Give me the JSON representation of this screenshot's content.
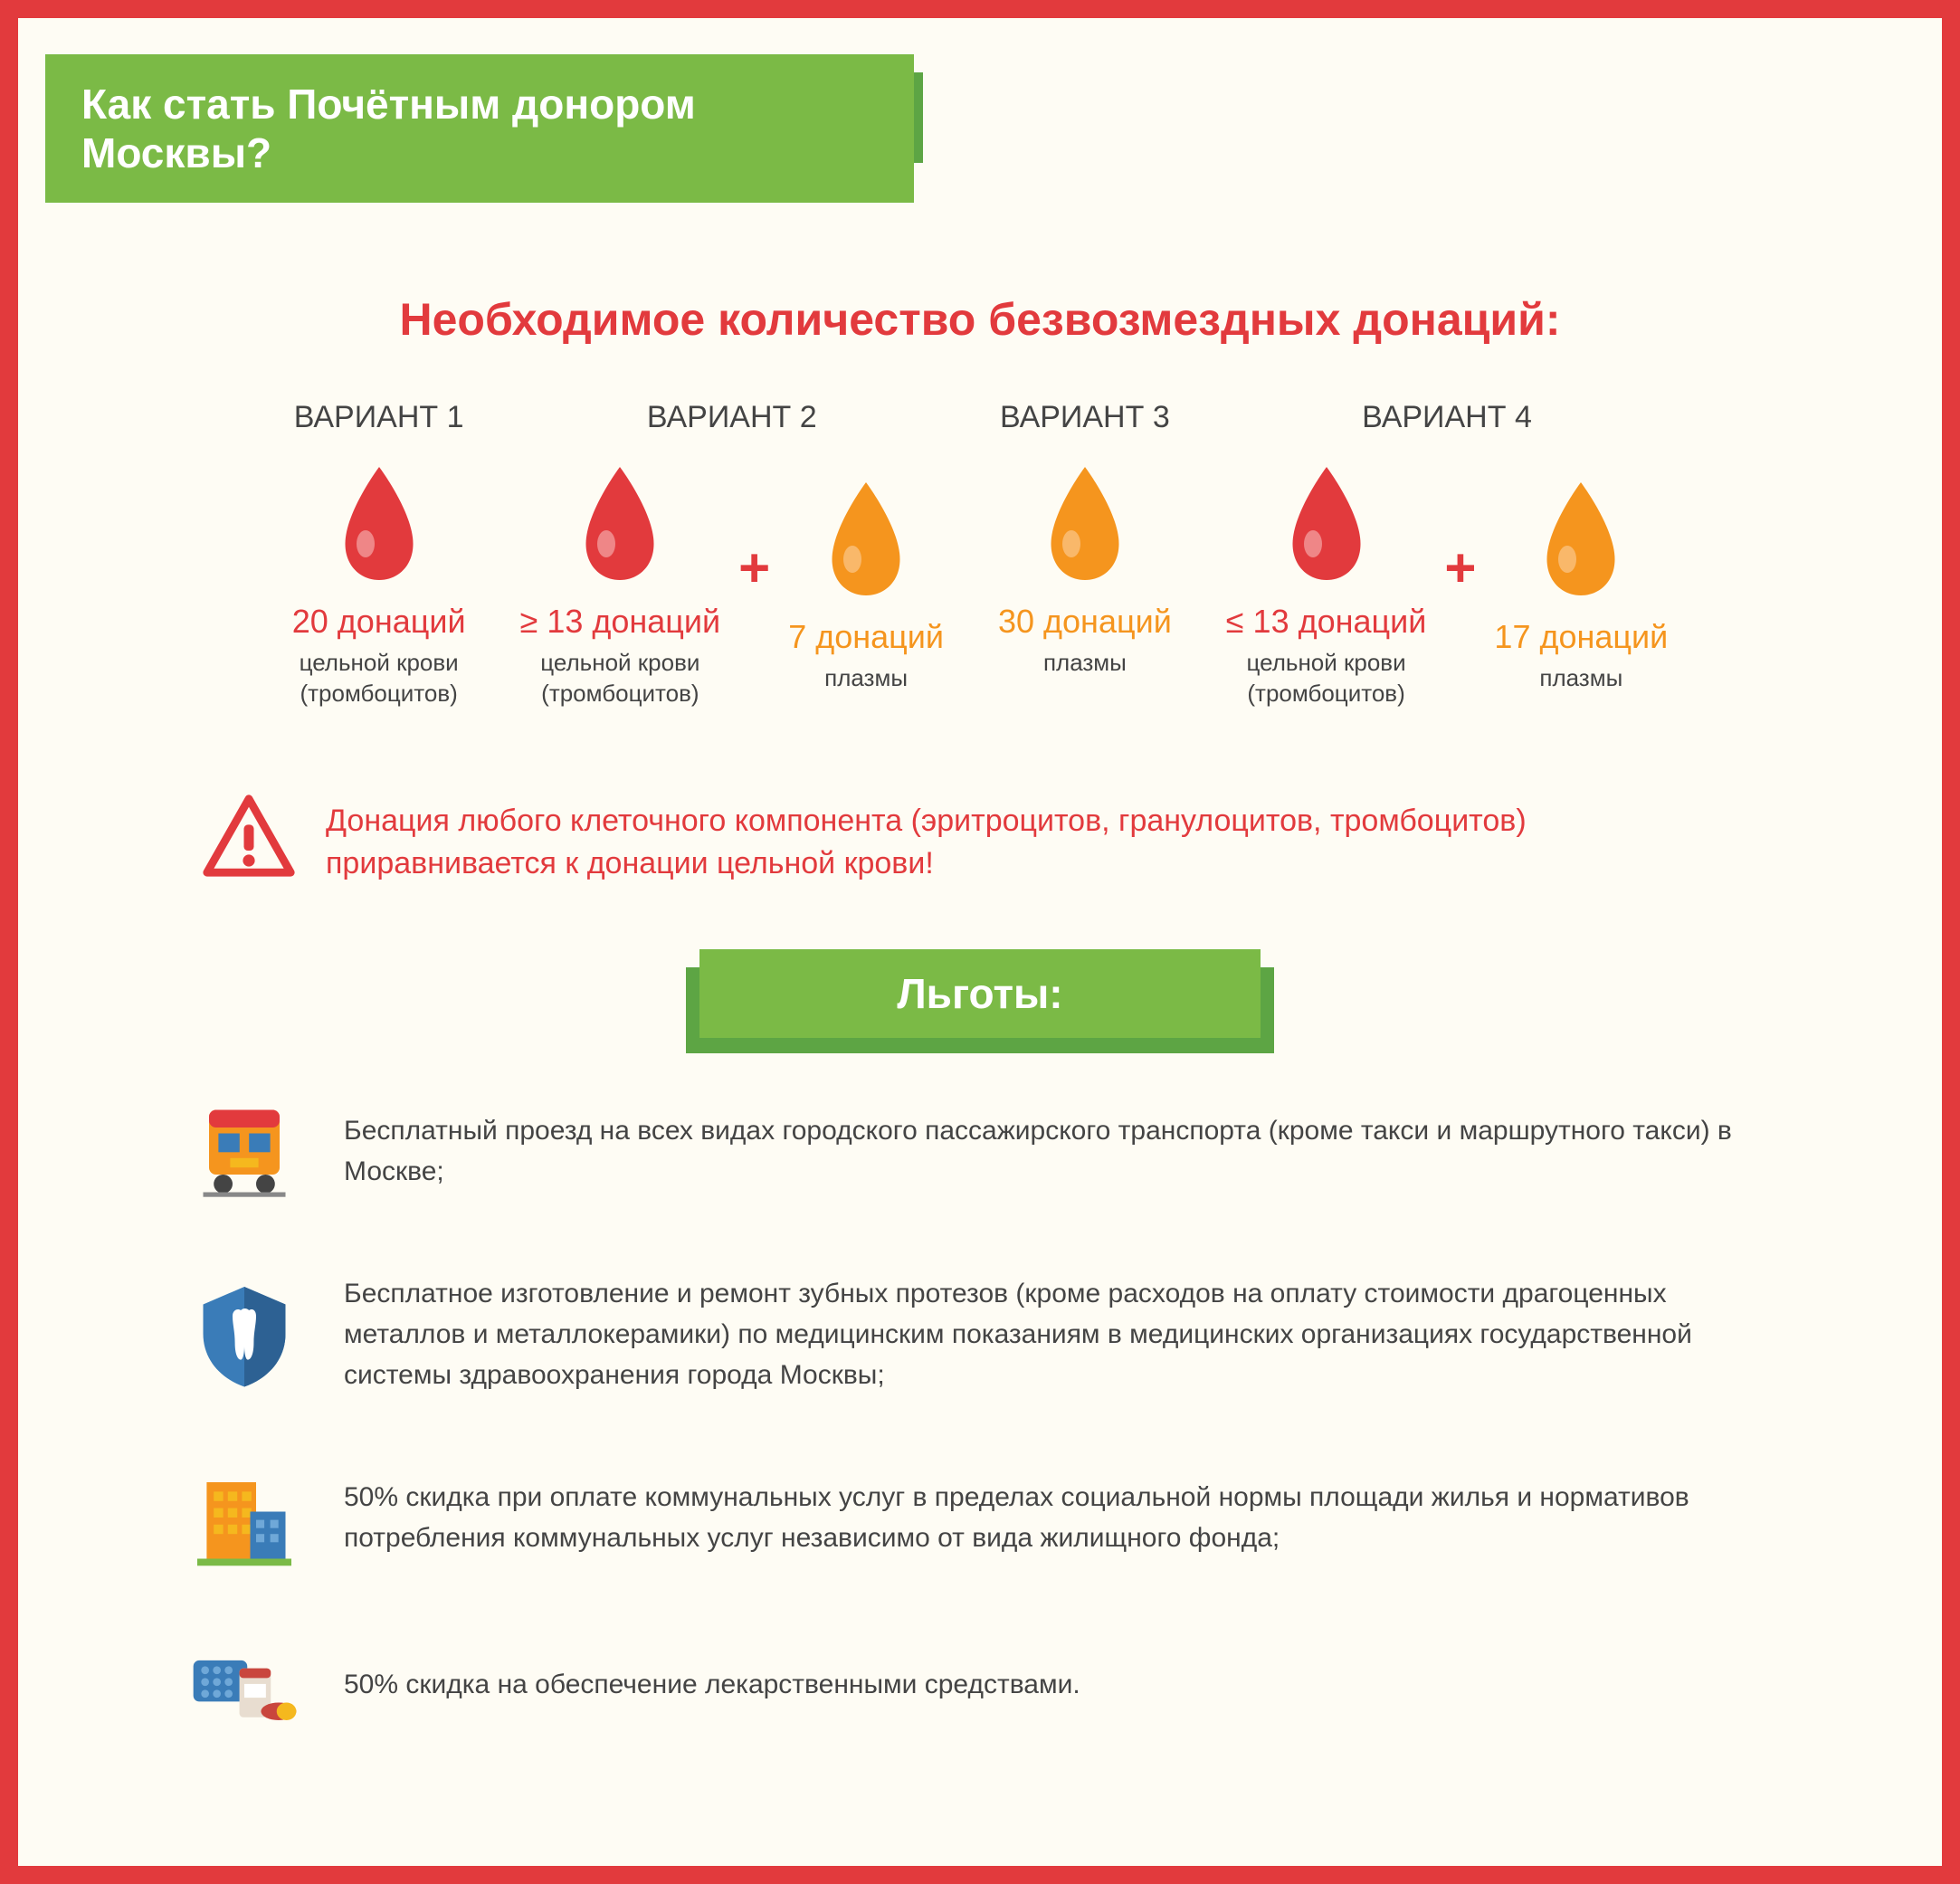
{
  "colors": {
    "border": "#e23a3d",
    "background": "#fefcf4",
    "green_light": "#7bba46",
    "green_dark": "#5da544",
    "red": "#e23a3d",
    "orange": "#f5951e",
    "text": "#444444",
    "white": "#ffffff",
    "blue": "#3a7cb8",
    "yellow": "#f5b81e"
  },
  "title": "Как стать Почётным донором Москвы?",
  "subtitle": "Необходимое количество безвозмездных донаций:",
  "variants": [
    {
      "label": "ВАРИАНТ 1",
      "items": [
        {
          "color": "red",
          "count": "20 донаций",
          "type": "цельной крови\n(тромбоцитов)"
        }
      ]
    },
    {
      "label": "ВАРИАНТ 2",
      "items": [
        {
          "color": "red",
          "count": "≥ 13 донаций",
          "type": "цельной крови\n(тромбоцитов)"
        },
        {
          "color": "orange",
          "count": "7 донаций",
          "type": "плазмы"
        }
      ]
    },
    {
      "label": "ВАРИАНТ 3",
      "items": [
        {
          "color": "orange",
          "count": "30 донаций",
          "type": "плазмы"
        }
      ]
    },
    {
      "label": "ВАРИАНТ 4",
      "items": [
        {
          "color": "red",
          "count": "≤ 13 донаций",
          "type": "цельной крови\n(тромбоцитов)"
        },
        {
          "color": "orange",
          "count": "17 донаций",
          "type": "плазмы"
        }
      ]
    }
  ],
  "warning": "Донация любого клеточного компонента (эритроцитов, гранулоцитов, тромбоцитов) приравнивается к донации цельной крови!",
  "benefits_title": "Льготы:",
  "benefits": [
    {
      "icon": "train",
      "text": "Бесплатный проезд на всех видах городского пассажирского транспорта (кроме такси и маршрутного такси) в Москве;"
    },
    {
      "icon": "tooth",
      "text": "Бесплатное изготовление и ремонт зубных протезов (кроме расходов на оплату стоимости драгоценных металлов и металлокерамики) по медицинским показаниям в медицинских организациях государственной системы здравоохранения города Москвы;"
    },
    {
      "icon": "building",
      "text": "50% скидка при оплате коммунальных услуг в пределах социальной нормы площади жилья и нормативов потребления коммунальных услуг независимо от вида жилищного фонда;"
    },
    {
      "icon": "medicine",
      "text": "50% скидка на обеспечение лекарственными средствами."
    }
  ]
}
